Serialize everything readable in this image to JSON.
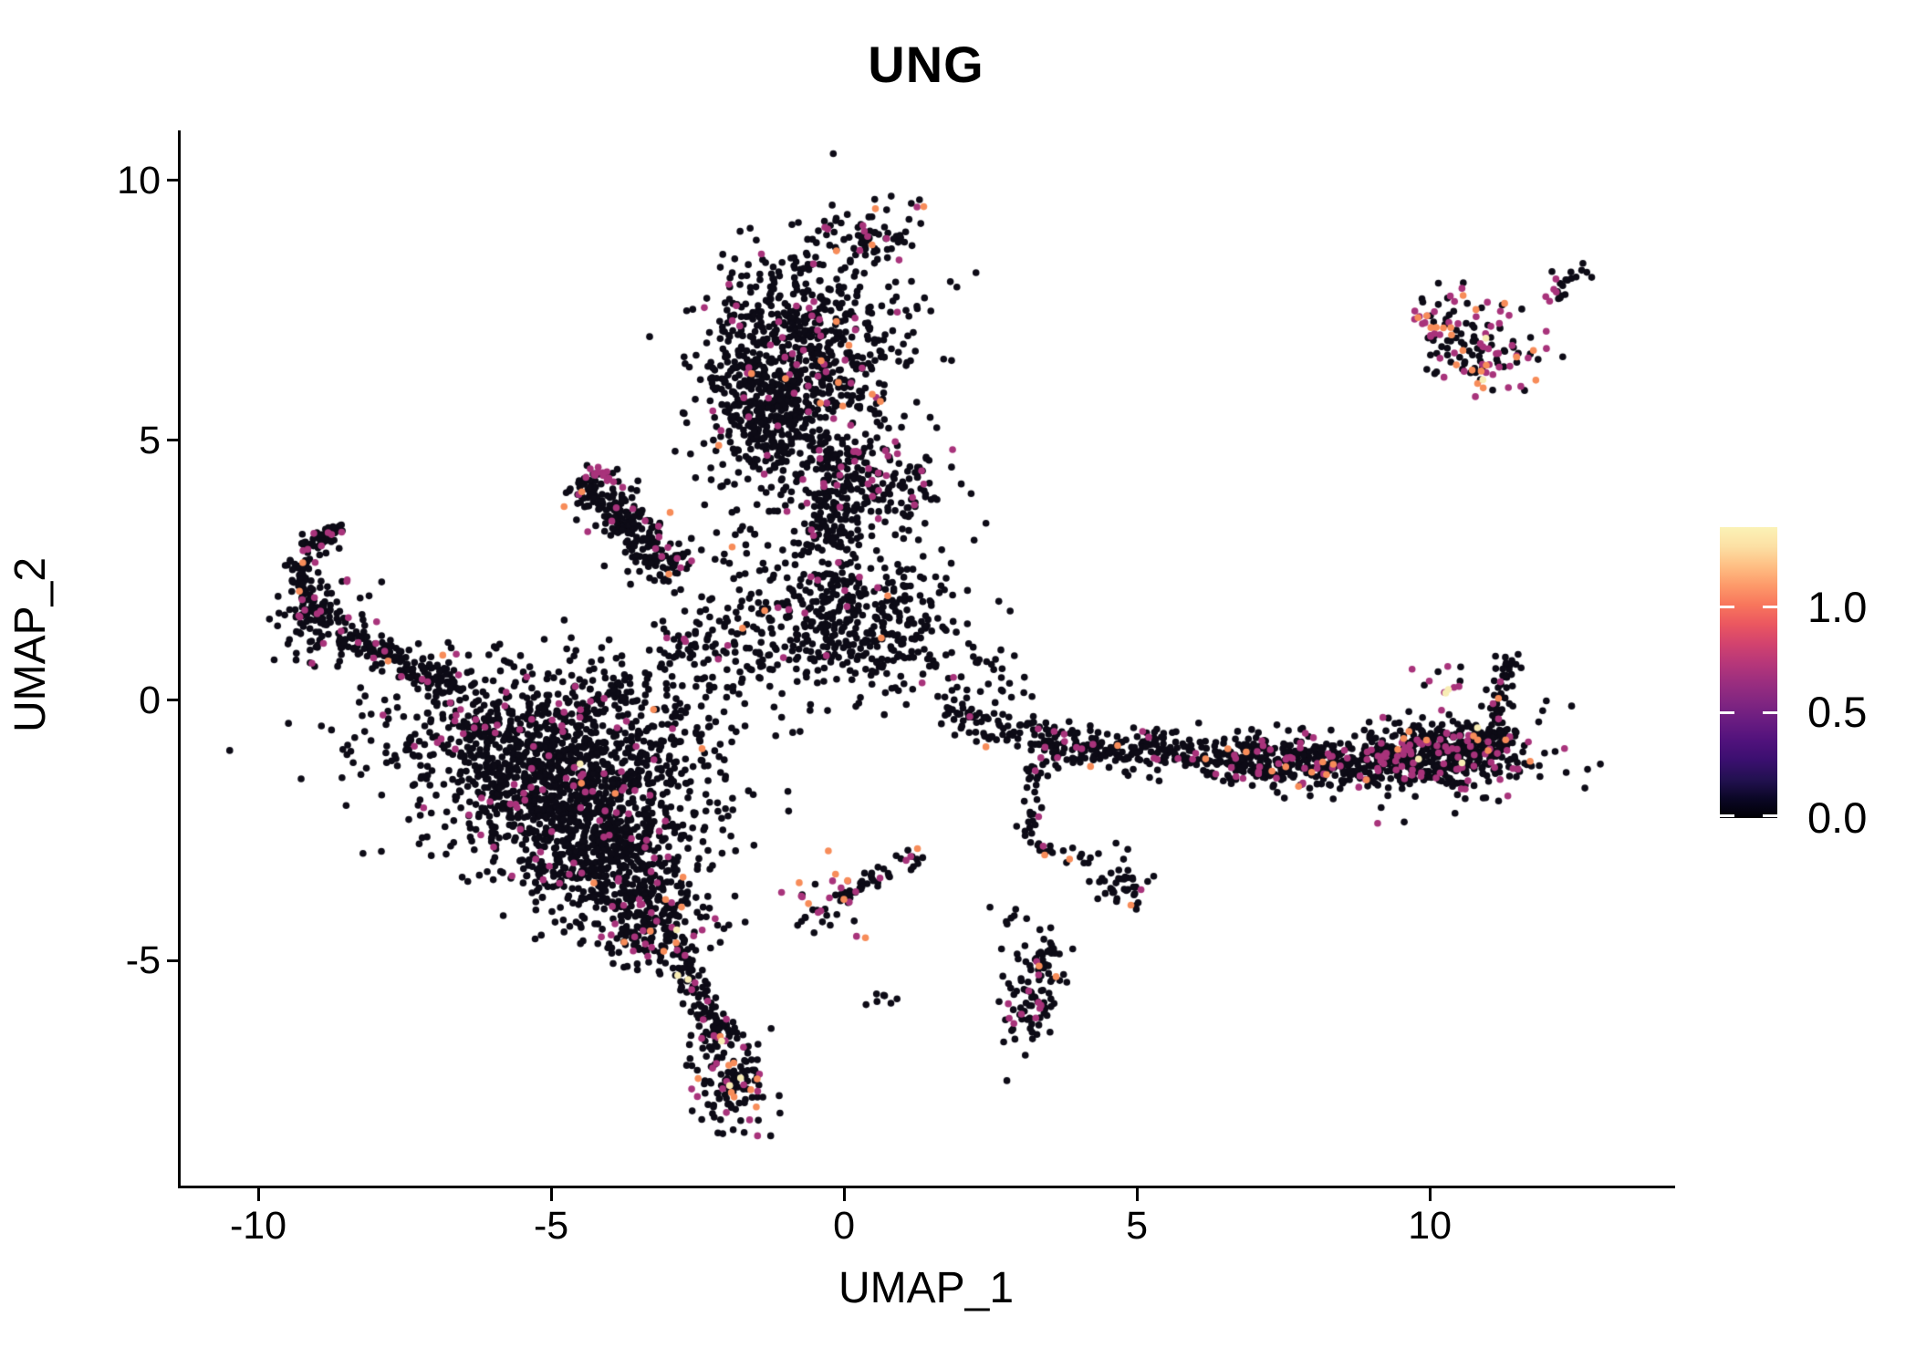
{
  "chart_data": {
    "type": "scatter",
    "title": "UNG",
    "xlabel": "UMAP_1",
    "ylabel": "UMAP_2",
    "xlim": [
      -11.34,
      14.14
    ],
    "ylim": [
      -9.33,
      10.96
    ],
    "x_ticks": [
      -10,
      -5,
      0,
      5,
      10
    ],
    "y_ticks": [
      -5,
      0,
      5,
      10
    ],
    "grid": false,
    "legend_position": "right",
    "point_colors": {
      "black": "#0d0b16",
      "magenta": "#a8337b",
      "orange": "#f78c59",
      "yellow": "#f8edb5"
    },
    "colorbar": {
      "tick_labels": [
        "1.0",
        "0.5",
        "0.0"
      ],
      "tick_values": [
        1.0,
        0.5,
        0.0
      ],
      "min": 0.0,
      "max": 1.38,
      "colormap": "magma",
      "gradient_bottom_to_top": [
        "#000004",
        "#0b0726",
        "#231151",
        "#3b0f70",
        "#51127c",
        "#691c81",
        "#822681",
        "#9b2e7f",
        "#b73779",
        "#d3436e",
        "#eb5760",
        "#f8765c",
        "#fd9a6a",
        "#febf84",
        "#fce0a4",
        "#fbf2b6"
      ]
    },
    "clusters": [
      {
        "id": "north-main",
        "type": "blob",
        "cx": -0.9,
        "cy": 6.6,
        "sx": 0.78,
        "sy": 1.15,
        "rot": -8,
        "n": 640,
        "mix": {
          "magenta": 0.06,
          "orange": 0.012,
          "yellow": 0.002
        }
      },
      {
        "id": "north-left",
        "type": "blob",
        "cx": -1.35,
        "cy": 5.55,
        "sx": 0.45,
        "sy": 0.75,
        "rot": 0,
        "n": 260,
        "mix": {
          "magenta": 0.05,
          "orange": 0.008,
          "yellow": 0.002
        }
      },
      {
        "id": "north-top-tip",
        "type": "blob",
        "cx": 0.55,
        "cy": 8.95,
        "sx": 0.45,
        "sy": 0.28,
        "rot": 20,
        "n": 55,
        "mix": {
          "magenta": 0.15,
          "orange": 0.05,
          "yellow": 0.02
        }
      },
      {
        "id": "north-right",
        "type": "blob",
        "cx": 0.35,
        "cy": 6.9,
        "sx": 0.8,
        "sy": 1.05,
        "rot": 0,
        "n": 120,
        "mix": {
          "magenta": 0.05,
          "orange": 0.01,
          "yellow": 0
        }
      },
      {
        "id": "north-neck",
        "type": "strip",
        "x1": -0.15,
        "y1": 5.0,
        "x2": -0.35,
        "y2": 2.9,
        "w": 0.55,
        "n": 150,
        "mix": {
          "magenta": 0.06,
          "orange": 0.01,
          "yellow": 0
        }
      },
      {
        "id": "neck-right-blob",
        "type": "blob",
        "cx": 0.75,
        "cy": 4.2,
        "sx": 0.5,
        "sy": 0.48,
        "rot": 0,
        "n": 120,
        "mix": {
          "magenta": 0.1,
          "orange": 0.01,
          "yellow": 0
        }
      },
      {
        "id": "central",
        "type": "blob",
        "cx": 0.1,
        "cy": 1.4,
        "sx": 1.0,
        "sy": 0.62,
        "rot": -5,
        "n": 430,
        "mix": {
          "magenta": 0.045,
          "orange": 0.005,
          "yellow": 0
        }
      },
      {
        "id": "central-upper",
        "type": "blob",
        "cx": -0.55,
        "cy": 2.7,
        "sx": 1.0,
        "sy": 0.75,
        "rot": 0,
        "n": 130,
        "mix": {
          "magenta": 0.05,
          "orange": 0.01,
          "yellow": 0
        }
      },
      {
        "id": "wing",
        "type": "strip",
        "x1": -4.55,
        "y1": 4.25,
        "x2": -2.85,
        "y2": 2.45,
        "w": 0.5,
        "n": 240,
        "mix": {
          "magenta": 0.07,
          "orange": 0.012,
          "yellow": 0
        }
      },
      {
        "id": "wing-edge",
        "type": "strip",
        "x1": -4.45,
        "y1": 4.6,
        "x2": -3.85,
        "y2": 4.15,
        "w": 0.1,
        "n": 13,
        "mix": {
          "magenta": 0.65,
          "orange": 0.1,
          "yellow": 0
        }
      },
      {
        "id": "hook-top",
        "type": "strip",
        "x1": -8.55,
        "y1": 3.35,
        "x2": -9.25,
        "y2": 2.85,
        "w": 0.2,
        "n": 55,
        "mix": {
          "magenta": 0.12,
          "orange": 0.01,
          "yellow": 0
        }
      },
      {
        "id": "hook-left",
        "type": "strip",
        "x1": -9.35,
        "y1": 2.75,
        "x2": -9.0,
        "y2": 1.5,
        "w": 0.27,
        "n": 90,
        "mix": {
          "magenta": 0.08,
          "orange": 0.01,
          "yellow": 0
        }
      },
      {
        "id": "hook-blob",
        "type": "blob",
        "cx": -8.85,
        "cy": 1.5,
        "sx": 0.38,
        "sy": 0.42,
        "rot": 0,
        "n": 95,
        "mix": {
          "magenta": 0.09,
          "orange": 0.01,
          "yellow": 0
        }
      },
      {
        "id": "hook-chain",
        "type": "strip",
        "x1": -8.5,
        "y1": 1.25,
        "x2": -6.5,
        "y2": 0.2,
        "w": 0.3,
        "n": 140,
        "mix": {
          "magenta": 0.06,
          "orange": 0.012,
          "yellow": 0
        }
      },
      {
        "id": "left-mass-1",
        "type": "blob",
        "cx": -5.0,
        "cy": -0.45,
        "sx": 1.55,
        "sy": 0.55,
        "rot": 0,
        "n": 520,
        "mix": {
          "magenta": 0.05,
          "orange": 0.008,
          "yellow": 0.002
        }
      },
      {
        "id": "left-mass-2",
        "type": "blob",
        "cx": -4.9,
        "cy": -1.35,
        "sx": 1.35,
        "sy": 0.52,
        "rot": 0,
        "n": 520,
        "mix": {
          "magenta": 0.05,
          "orange": 0.008,
          "yellow": 0.002
        }
      },
      {
        "id": "left-mass-3",
        "type": "blob",
        "cx": -4.6,
        "cy": -2.2,
        "sx": 1.1,
        "sy": 0.5,
        "rot": 0,
        "n": 430,
        "mix": {
          "magenta": 0.05,
          "orange": 0.008,
          "yellow": 0.002
        }
      },
      {
        "id": "left-mass-4",
        "type": "blob",
        "cx": -4.2,
        "cy": -3.0,
        "sx": 0.85,
        "sy": 0.46,
        "rot": 0,
        "n": 330,
        "mix": {
          "magenta": 0.05,
          "orange": 0.008,
          "yellow": 0.002
        }
      },
      {
        "id": "left-mass-5",
        "type": "blob",
        "cx": -3.7,
        "cy": -3.8,
        "sx": 0.6,
        "sy": 0.4,
        "rot": 0,
        "n": 200,
        "mix": {
          "magenta": 0.06,
          "orange": 0.01,
          "yellow": 0.003
        }
      },
      {
        "id": "left-mass-tip",
        "type": "blob",
        "cx": -3.2,
        "cy": -4.5,
        "sx": 0.45,
        "sy": 0.34,
        "rot": 0,
        "n": 110,
        "mix": {
          "magenta": 0.07,
          "orange": 0.015,
          "yellow": 0.004
        }
      },
      {
        "id": "left-mass-upper-right",
        "type": "blob",
        "cx": -2.35,
        "cy": 0.85,
        "sx": 0.5,
        "sy": 0.5,
        "rot": 0,
        "n": 90,
        "mix": {
          "magenta": 0.05,
          "orange": 0.01,
          "yellow": 0
        }
      },
      {
        "id": "left-mass-top-sparse",
        "type": "blob",
        "cx": -4.8,
        "cy": 0.7,
        "sx": 1.6,
        "sy": 0.4,
        "rot": 0,
        "n": 45,
        "mix": {
          "magenta": 0.04,
          "orange": 0,
          "yellow": 0
        }
      },
      {
        "id": "tail",
        "type": "strip",
        "x1": -2.95,
        "y1": -4.7,
        "x2": -2.0,
        "y2": -6.6,
        "w": 0.34,
        "n": 120,
        "mix": {
          "magenta": 0.1,
          "orange": 0.03,
          "yellow": 0.005
        }
      },
      {
        "id": "tail-tip",
        "type": "blob",
        "cx": -1.9,
        "cy": -7.3,
        "sx": 0.32,
        "sy": 0.55,
        "rot": 10,
        "n": 140,
        "mix": {
          "magenta": 0.17,
          "orange": 0.035,
          "yellow": 0.01
        }
      },
      {
        "id": "chain-mid",
        "type": "strip",
        "x1": -0.85,
        "y1": -4.35,
        "x2": 1.35,
        "y2": -2.9,
        "w": 0.22,
        "n": 55,
        "mix": {
          "magenta": 0.1,
          "orange": 0.05,
          "yellow": 0
        }
      },
      {
        "id": "chain-mid-colored",
        "type": "blob",
        "cx": -0.2,
        "cy": -3.65,
        "sx": 0.3,
        "sy": 0.3,
        "rot": 0,
        "n": 22,
        "mix": {
          "magenta": 0.35,
          "orange": 0.3,
          "yellow": 0
        }
      },
      {
        "id": "pair",
        "type": "blob",
        "cx": 0.6,
        "cy": -5.75,
        "sx": 0.18,
        "sy": 0.08,
        "rot": 0,
        "n": 7,
        "mix": {
          "magenta": 0,
          "orange": 0,
          "yellow": 0
        }
      },
      {
        "id": "band-left",
        "type": "strip",
        "x1": 1.6,
        "y1": -0.15,
        "x2": 3.4,
        "y2": -0.8,
        "w": 0.35,
        "n": 85,
        "mix": {
          "magenta": 0.05,
          "orange": 0.01,
          "yellow": 0
        }
      },
      {
        "id": "band-left-upper",
        "type": "blob",
        "cx": 2.4,
        "cy": 0.35,
        "sx": 0.5,
        "sy": 0.3,
        "rot": 0,
        "n": 28,
        "mix": {
          "magenta": 0.04,
          "orange": 0,
          "yellow": 0
        }
      },
      {
        "id": "band-mid",
        "type": "strip",
        "x1": 3.4,
        "y1": -0.85,
        "x2": 6.5,
        "y2": -1.05,
        "w": 0.42,
        "n": 230,
        "mix": {
          "magenta": 0.06,
          "orange": 0.012,
          "yellow": 0
        }
      },
      {
        "id": "band-right-1",
        "type": "strip",
        "x1": 6.5,
        "y1": -1.1,
        "x2": 9.0,
        "y2": -1.25,
        "w": 0.5,
        "n": 320,
        "mix": {
          "magenta": 0.1,
          "orange": 0.015,
          "yellow": 0.003
        }
      },
      {
        "id": "band-right-2",
        "type": "strip",
        "x1": 9.0,
        "y1": -1.15,
        "x2": 11.35,
        "y2": -0.8,
        "w": 0.5,
        "n": 330,
        "mix": {
          "magenta": 0.13,
          "orange": 0.02,
          "yellow": 0.004
        }
      },
      {
        "id": "band-right-dense",
        "type": "blob",
        "cx": 10.4,
        "cy": -1.1,
        "sx": 0.9,
        "sy": 0.4,
        "rot": 5,
        "n": 230,
        "mix": {
          "magenta": 0.13,
          "orange": 0.02,
          "yellow": 0.004
        }
      },
      {
        "id": "band-curl-up",
        "type": "strip",
        "x1": 11.05,
        "y1": -0.85,
        "x2": 11.35,
        "y2": 0.95,
        "w": 0.22,
        "n": 55,
        "mix": {
          "magenta": 0.08,
          "orange": 0.01,
          "yellow": 0
        }
      },
      {
        "id": "expr-clump",
        "type": "blob",
        "cx": 10.25,
        "cy": 0.4,
        "sx": 0.22,
        "sy": 0.28,
        "rot": 0,
        "n": 12,
        "mix": {
          "magenta": 0.25,
          "orange": 0.35,
          "yellow": 0.12
        }
      },
      {
        "id": "chain-right-v",
        "type": "strip",
        "x1": 3.2,
        "y1": -0.95,
        "x2": 3.15,
        "y2": -2.75,
        "w": 0.16,
        "n": 32,
        "mix": {
          "magenta": 0.06,
          "orange": 0,
          "yellow": 0
        }
      },
      {
        "id": "chain-right-h",
        "type": "strip",
        "x1": 3.3,
        "y1": -2.85,
        "x2": 4.3,
        "y2": -3.05,
        "w": 0.13,
        "n": 20,
        "mix": {
          "magenta": 0.08,
          "orange": 0.08,
          "yellow": 0
        }
      },
      {
        "id": "chain-right-blob",
        "type": "blob",
        "cx": 4.8,
        "cy": -3.55,
        "sx": 0.24,
        "sy": 0.3,
        "rot": 0,
        "n": 40,
        "mix": {
          "magenta": 0.05,
          "orange": 0.03,
          "yellow": 0
        }
      },
      {
        "id": "chain-right-pair",
        "type": "blob",
        "cx": 2.55,
        "cy": -4.15,
        "sx": 0.2,
        "sy": 0.09,
        "rot": 0,
        "n": 6,
        "mix": {
          "magenta": 0,
          "orange": 0,
          "yellow": 0
        }
      },
      {
        "id": "small-vert",
        "type": "blob",
        "cx": 3.25,
        "cy": -5.6,
        "sx": 0.3,
        "sy": 0.65,
        "rot": -18,
        "n": 105,
        "mix": {
          "magenta": 0.13,
          "orange": 0.01,
          "yellow": 0
        }
      },
      {
        "id": "topright-main",
        "type": "blob",
        "cx": 10.9,
        "cy": 6.85,
        "sx": 0.6,
        "sy": 0.5,
        "rot": -35,
        "n": 130,
        "mix": {
          "magenta": 0.28,
          "orange": 0.09,
          "yellow": 0.02
        }
      },
      {
        "id": "topright-arm",
        "type": "strip",
        "x1": 9.7,
        "y1": 7.35,
        "x2": 10.35,
        "y2": 7.2,
        "w": 0.14,
        "n": 16,
        "mix": {
          "magenta": 0.2,
          "orange": 0.2,
          "yellow": 0
        }
      },
      {
        "id": "topright-link",
        "type": "strip",
        "x1": 11.85,
        "y1": 7.6,
        "x2": 12.3,
        "y2": 7.95,
        "w": 0.12,
        "n": 8,
        "mix": {
          "magenta": 0.1,
          "orange": 0,
          "yellow": 0
        }
      },
      {
        "id": "topright-satellite",
        "type": "blob",
        "cx": 12.45,
        "cy": 8.15,
        "sx": 0.2,
        "sy": 0.13,
        "rot": 35,
        "n": 13,
        "mix": {
          "magenta": 0.2,
          "orange": 0,
          "yellow": 0
        }
      }
    ]
  }
}
